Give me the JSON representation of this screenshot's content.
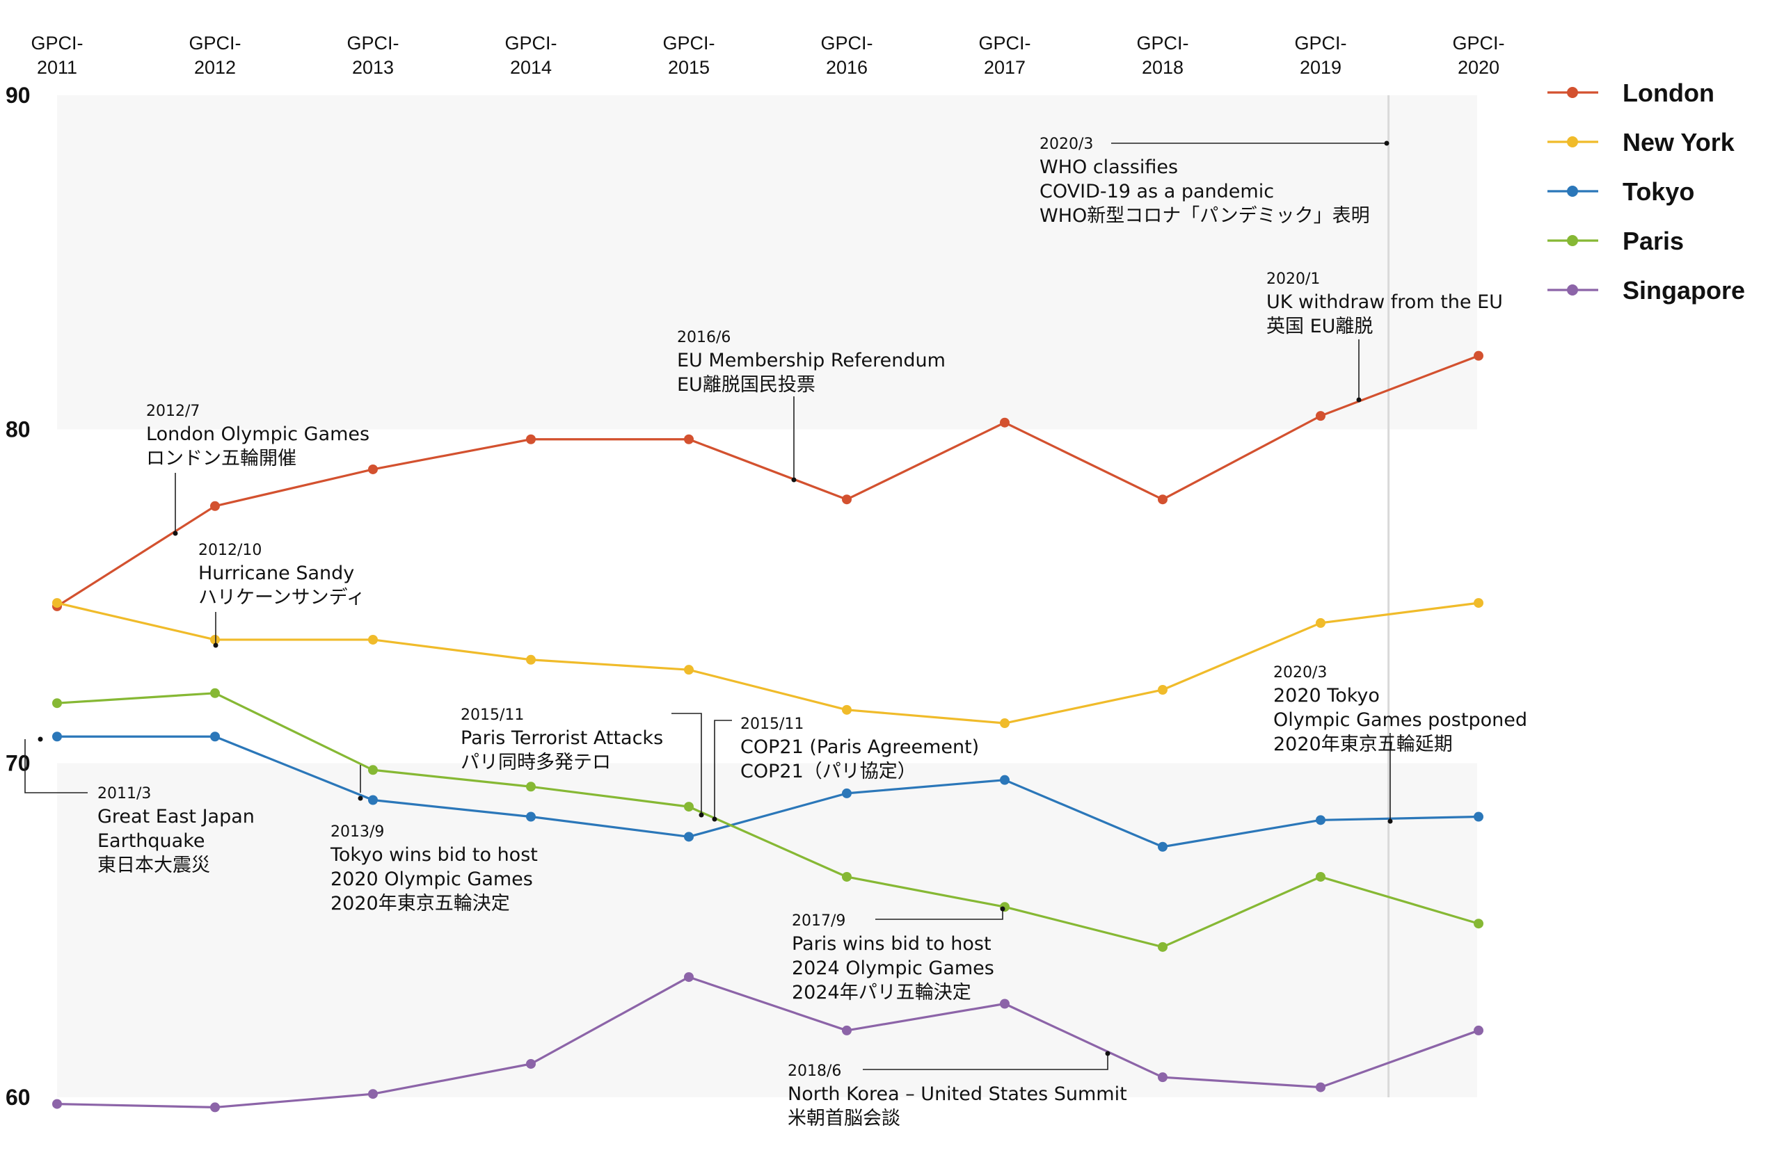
{
  "chart_data": {
    "type": "line",
    "categories": [
      "GPCI-2011",
      "GPCI-2012",
      "GPCI-2013",
      "GPCI-2014",
      "GPCI-2015",
      "GPCI-2016",
      "GPCI-2017",
      "GPCI-2018",
      "GPCI-2019",
      "GPCI-2020"
    ],
    "ylim": [
      60,
      90
    ],
    "yticks": [
      60,
      70,
      80,
      90
    ],
    "grid": false,
    "legend_position": "right",
    "series": [
      {
        "name": "London",
        "color": "#d3512f",
        "values": [
          74.7,
          77.7,
          78.8,
          79.7,
          79.7,
          77.9,
          80.2,
          77.9,
          80.4,
          82.2
        ]
      },
      {
        "name": "New York",
        "color": "#f0bb2a",
        "values": [
          74.8,
          73.7,
          73.7,
          73.1,
          72.8,
          71.6,
          71.2,
          72.2,
          74.2,
          74.8
        ]
      },
      {
        "name": "Tokyo",
        "color": "#2b77b9",
        "values": [
          70.8,
          70.8,
          68.9,
          68.4,
          67.8,
          69.1,
          69.5,
          67.5,
          68.3,
          68.4
        ]
      },
      {
        "name": "Paris",
        "color": "#86b834",
        "values": [
          71.8,
          72.1,
          69.8,
          69.3,
          68.7,
          66.6,
          65.7,
          64.5,
          66.6,
          65.2
        ]
      },
      {
        "name": "Singapore",
        "color": "#8c64a8",
        "values": [
          59.8,
          59.7,
          60.1,
          61.0,
          63.6,
          62.0,
          62.8,
          60.6,
          60.3,
          62.0
        ]
      }
    ],
    "annotations": [
      {
        "date": "2011/3",
        "lines": [
          "Great East Japan",
          "Earthquake",
          "東日本大震災"
        ]
      },
      {
        "date": "2012/7",
        "lines": [
          "London Olympic Games",
          "ロンドン五輪開催"
        ]
      },
      {
        "date": "2012/10",
        "lines": [
          "Hurricane Sandy",
          "ハリケーンサンディ"
        ]
      },
      {
        "date": "2013/9",
        "lines": [
          "Tokyo wins bid to host",
          "2020 Olympic Games",
          "2020年東京五輪決定"
        ]
      },
      {
        "date": "2015/11",
        "lines": [
          "Paris Terrorist Attacks",
          "パリ同時多発テロ"
        ]
      },
      {
        "date": "2015/11",
        "lines": [
          "COP21 (Paris Agreement)",
          "COP21（パリ協定）"
        ]
      },
      {
        "date": "2016/6",
        "lines": [
          "EU Membership Referendum",
          "EU離脱国民投票"
        ]
      },
      {
        "date": "2017/9",
        "lines": [
          "Paris wins bid to host",
          "2024 Olympic Games",
          "2024年パリ五輪決定"
        ]
      },
      {
        "date": "2018/6",
        "lines": [
          "North Korea – United States Summit",
          "米朝首脳会談"
        ]
      },
      {
        "date": "2020/1",
        "lines": [
          "UK withdraw from the EU",
          "英国 EU離脱"
        ]
      },
      {
        "date": "2020/3",
        "lines": [
          "WHO classifies",
          "COVID-19 as a pandemic",
          "WHO新型コロナ「パンデミック」表明"
        ]
      },
      {
        "date": "2020/3",
        "lines": [
          "2020 Tokyo",
          "Olympic Games postponed",
          "2020年東京五輪延期"
        ]
      }
    ]
  }
}
